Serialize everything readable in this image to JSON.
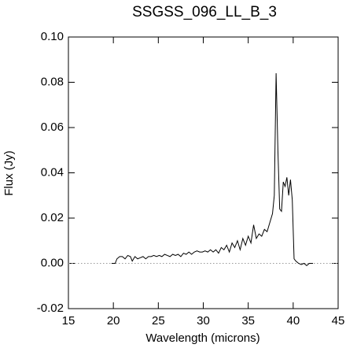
{
  "chart_data": {
    "type": "line",
    "title": "SSGSS_096_LL_B_3",
    "xlabel": "Wavelength (microns)",
    "ylabel": "Flux (Jy)",
    "x": [
      19.8,
      20.2,
      20.4,
      20.7,
      21.0,
      21.3,
      21.6,
      21.9,
      22.1,
      22.4,
      22.7,
      23.0,
      23.3,
      23.6,
      23.9,
      24.2,
      24.5,
      24.8,
      25.1,
      25.4,
      25.7,
      26.0,
      26.3,
      26.6,
      26.9,
      27.2,
      27.5,
      27.8,
      28.1,
      28.4,
      28.7,
      29.0,
      29.3,
      29.6,
      29.9,
      30.2,
      30.5,
      30.8,
      31.1,
      31.4,
      31.7,
      32.0,
      32.3,
      32.6,
      32.9,
      33.2,
      33.5,
      33.8,
      34.1,
      34.4,
      34.7,
      35.0,
      35.3,
      35.6,
      35.9,
      36.2,
      36.5,
      36.8,
      37.1,
      37.4,
      37.7,
      37.9,
      38.1,
      38.3,
      38.5,
      38.7,
      38.9,
      39.1,
      39.3,
      39.5,
      39.7,
      39.9,
      40.1,
      40.3,
      40.6,
      40.9,
      41.2,
      41.5,
      41.8,
      42.2
    ],
    "values": [
      0.0,
      0.0,
      0.002,
      0.003,
      0.003,
      0.002,
      0.0035,
      0.003,
      0.001,
      0.003,
      0.002,
      0.0025,
      0.003,
      0.002,
      0.003,
      0.003,
      0.0035,
      0.003,
      0.0035,
      0.003,
      0.004,
      0.0035,
      0.003,
      0.004,
      0.0035,
      0.004,
      0.003,
      0.0045,
      0.004,
      0.005,
      0.004,
      0.005,
      0.0055,
      0.005,
      0.005,
      0.0055,
      0.005,
      0.006,
      0.005,
      0.006,
      0.0045,
      0.007,
      0.006,
      0.008,
      0.005,
      0.009,
      0.007,
      0.01,
      0.006,
      0.011,
      0.008,
      0.012,
      0.009,
      0.017,
      0.011,
      0.013,
      0.012,
      0.015,
      0.014,
      0.018,
      0.022,
      0.03,
      0.084,
      0.05,
      0.024,
      0.023,
      0.036,
      0.034,
      0.038,
      0.03,
      0.037,
      0.028,
      0.002,
      0.001,
      0.0,
      -0.0005,
      0.0,
      -0.001,
      0.0,
      0.0
    ],
    "color": "#000000",
    "xlim": [
      15,
      45
    ],
    "xticks": [
      15,
      20,
      25,
      30,
      35,
      40,
      45
    ],
    "ylim": [
      -0.02,
      0.1
    ],
    "yticks": [
      {
        "value": -0.02,
        "label": "-0.02"
      },
      {
        "value": 0,
        "label": "0.00"
      },
      {
        "value": 0.02,
        "label": "0.02"
      },
      {
        "value": 0.04,
        "label": "0.04"
      },
      {
        "value": 0.06,
        "label": "0.06"
      },
      {
        "value": 0.08,
        "label": "0.08"
      },
      {
        "value": 0.1,
        "label": "0.10"
      }
    ],
    "zero_line": true
  }
}
